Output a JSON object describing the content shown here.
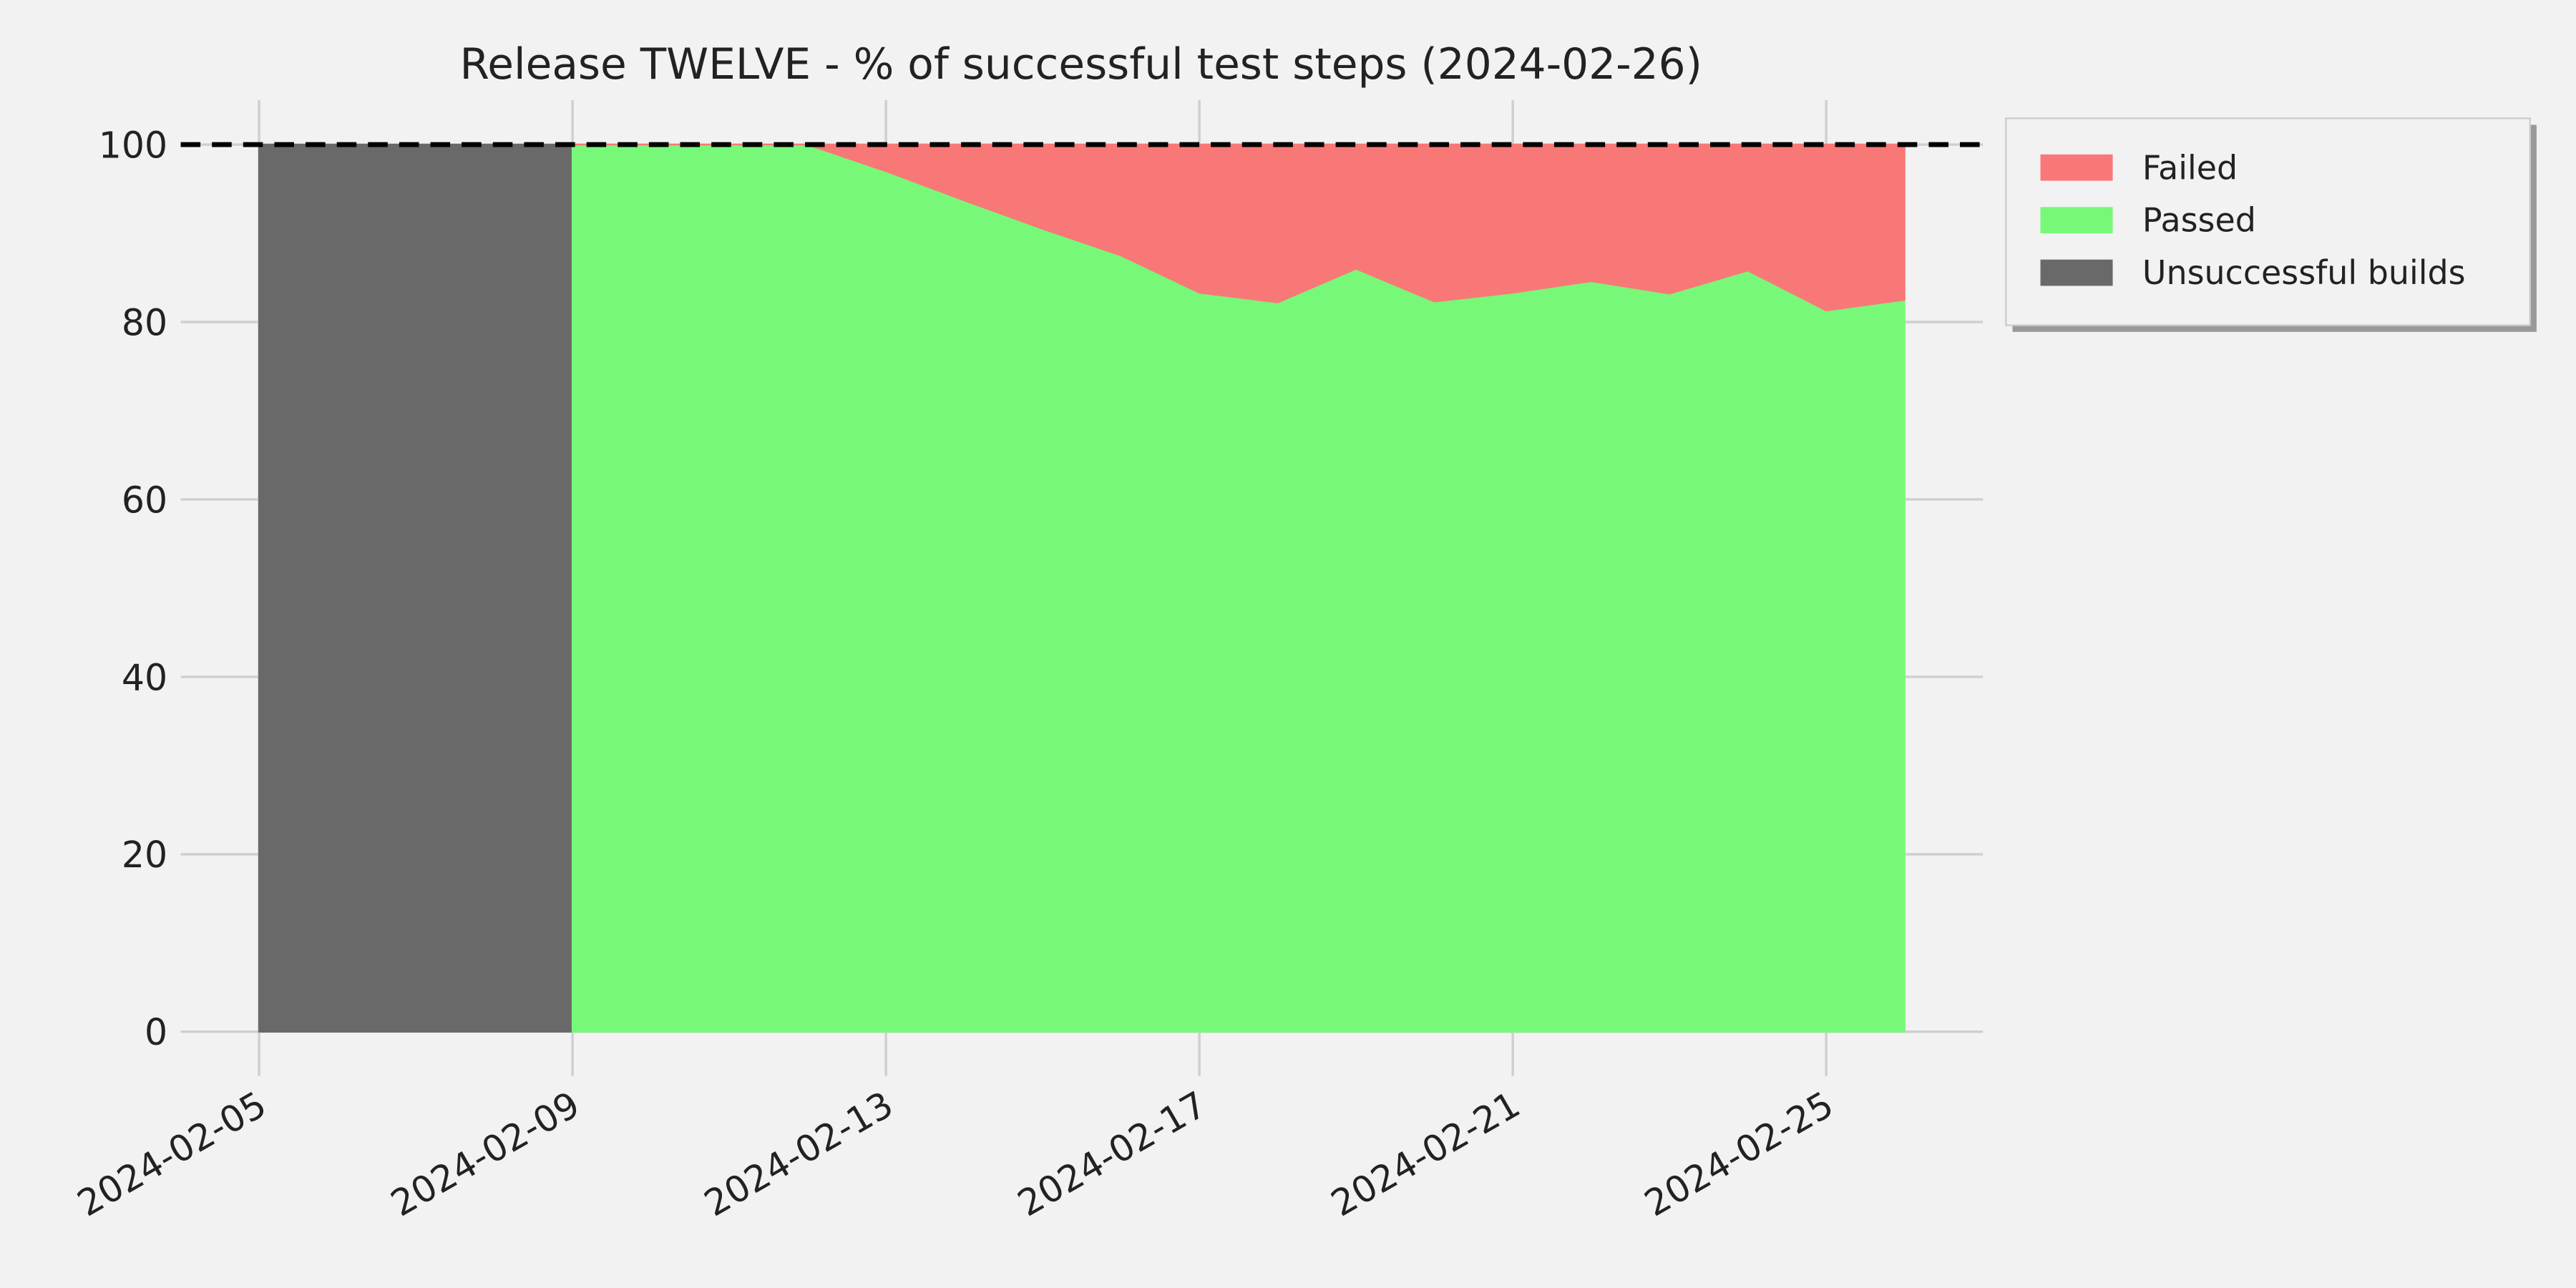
{
  "chart_data": {
    "type": "stacked_area",
    "title": "Release TWELVE - % of successful test steps (2024-02-26)",
    "x": [
      "2024-02-05",
      "2024-02-06",
      "2024-02-07",
      "2024-02-08",
      "2024-02-09",
      "2024-02-10",
      "2024-02-11",
      "2024-02-12",
      "2024-02-13",
      "2024-02-14",
      "2024-02-15",
      "2024-02-16",
      "2024-02-17",
      "2024-02-18",
      "2024-02-19",
      "2024-02-20",
      "2024-02-21",
      "2024-02-22",
      "2024-02-23",
      "2024-02-24",
      "2024-02-25",
      "2024-02-26"
    ],
    "series": [
      {
        "name": "Failed",
        "color": "#f87878",
        "values": [
          null,
          null,
          null,
          null,
          0,
          0,
          0,
          0,
          3,
          6.3,
          9.5,
          12.5,
          16.7,
          17.8,
          14,
          17.7,
          16.7,
          15.4,
          16.8,
          14.2,
          18.7,
          17.5
        ]
      },
      {
        "name": "Passed",
        "color": "#78f878",
        "values": [
          null,
          null,
          null,
          null,
          100,
          100,
          100,
          100,
          97,
          93.7,
          90.5,
          87.5,
          83.3,
          82.2,
          86,
          82.3,
          83.3,
          84.6,
          83.2,
          85.8,
          81.3,
          82.5
        ]
      },
      {
        "name": "Unsuccessful builds",
        "color": "#696969",
        "step": "post",
        "values": [
          100,
          100,
          100,
          100,
          null,
          null,
          null,
          null,
          null,
          null,
          null,
          null,
          null,
          null,
          null,
          null,
          null,
          null,
          null,
          null,
          null,
          null
        ]
      }
    ],
    "reference_line": 100,
    "xlim": [
      "2024-02-04",
      "2024-02-27"
    ],
    "xticks": [
      "2024-02-05",
      "2024-02-09",
      "2024-02-13",
      "2024-02-17",
      "2024-02-21",
      "2024-02-25"
    ],
    "ylim": [
      -5,
      105
    ],
    "yticks": [
      0,
      20,
      40,
      60,
      80,
      100
    ],
    "grid": true,
    "legend": "outside-upper-right"
  }
}
